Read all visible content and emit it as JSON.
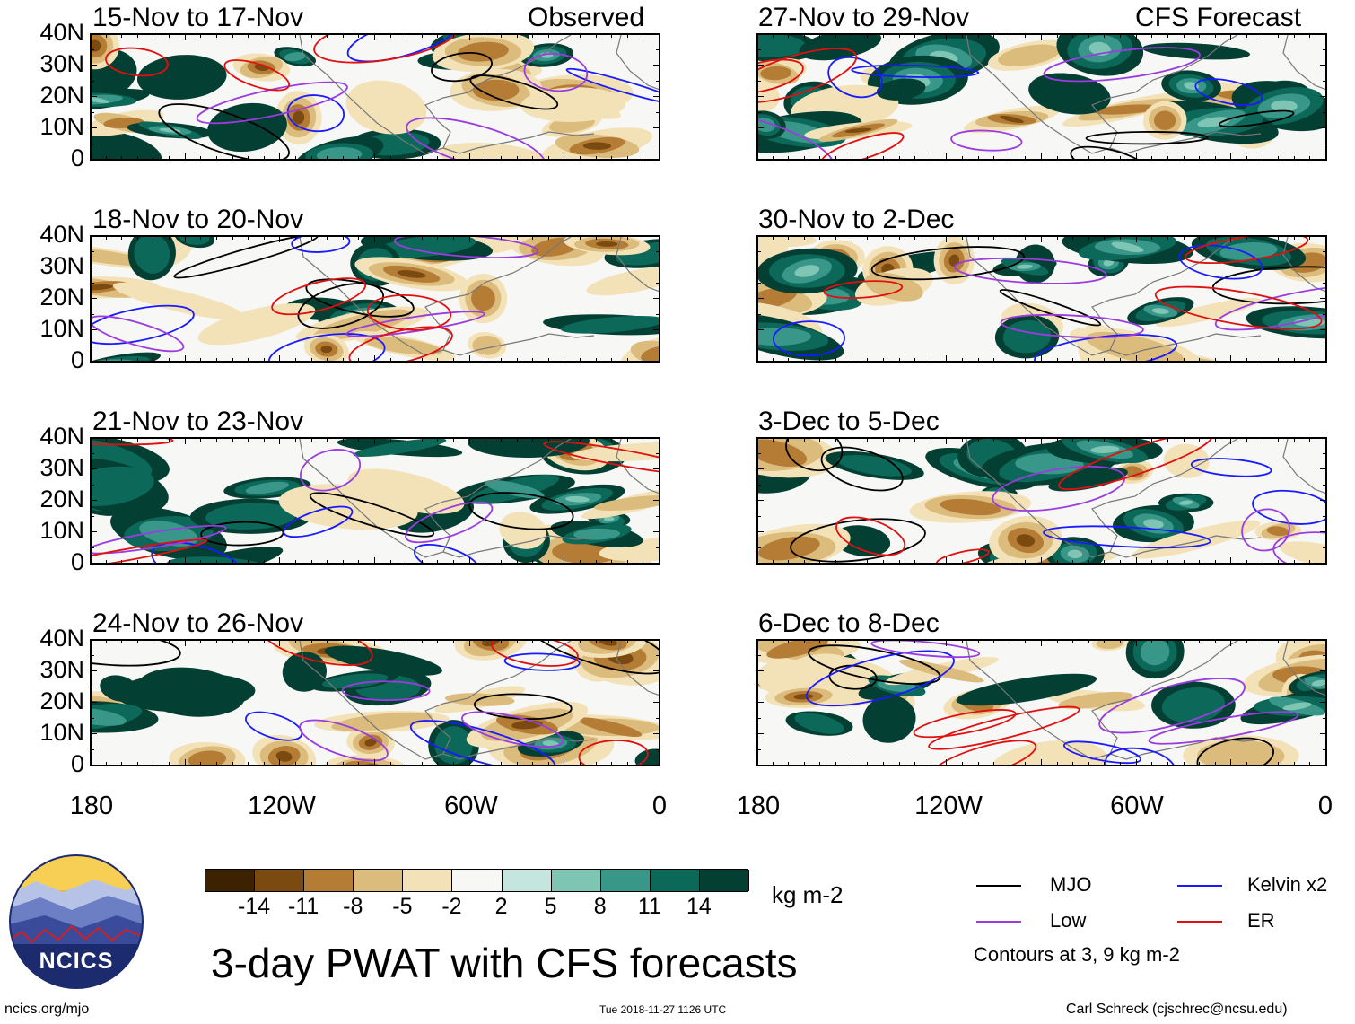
{
  "panels_left": [
    {
      "title": "15-Nov to 17-Nov",
      "label": "Observed"
    },
    {
      "title": "18-Nov to 20-Nov",
      "label": ""
    },
    {
      "title": "21-Nov to 23-Nov",
      "label": ""
    },
    {
      "title": "24-Nov to 26-Nov",
      "label": ""
    }
  ],
  "panels_right": [
    {
      "title": "27-Nov to 29-Nov",
      "label": "CFS Forecast"
    },
    {
      "title": "30-Nov to 2-Dec",
      "label": ""
    },
    {
      "title": "3-Dec to 5-Dec",
      "label": ""
    },
    {
      "title": "6-Dec to 8-Dec",
      "label": ""
    }
  ],
  "lat_labels": [
    "40N",
    "30N",
    "20N",
    "10N",
    "0"
  ],
  "lon_labels": [
    "180",
    "120W",
    "60W",
    "0"
  ],
  "colorbar": {
    "ticks": [
      "-14",
      "-11",
      "-8",
      "-5",
      "-2",
      "2",
      "5",
      "8",
      "11",
      "14"
    ],
    "colors": [
      "#3c2200",
      "#7a4a10",
      "#b57c35",
      "#dcbc7c",
      "#f3e2b8",
      "#f7f7f5",
      "#c4e6df",
      "#7ec5b4",
      "#39978a",
      "#0c6959",
      "#043f33"
    ],
    "units": "kg m-2"
  },
  "legend": {
    "items": [
      {
        "label": "MJO",
        "color": "#000000"
      },
      {
        "label": "Kelvin x2",
        "color": "#1a1aff"
      },
      {
        "label": "Low",
        "color": "#9a3ce0"
      },
      {
        "label": "ER",
        "color": "#e01010"
      }
    ],
    "note": "Contours at 3, 9 kg m-2"
  },
  "main_title": "3-day PWAT with CFS forecasts",
  "logo_text": "NCICS",
  "footer": {
    "left": "ncics.org/mjo",
    "center": "Tue 2018-11-27 1126 UTC",
    "right": "Carl Schreck (cjschrec@ncsu.edu)"
  }
}
